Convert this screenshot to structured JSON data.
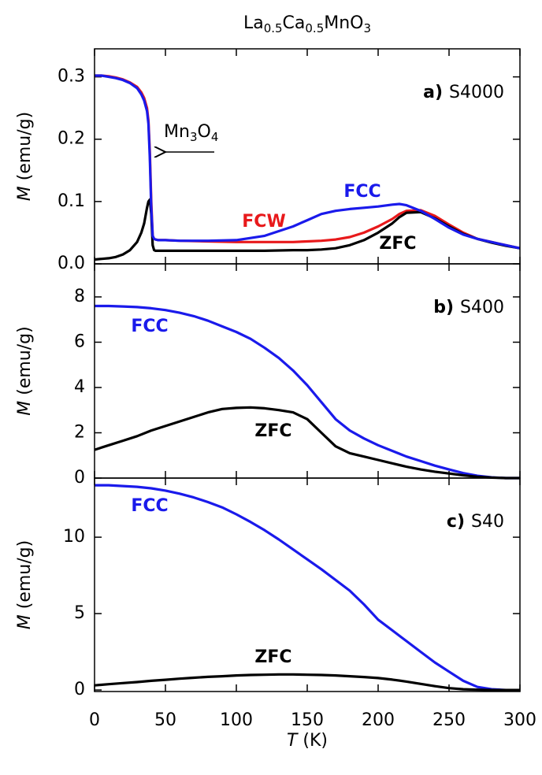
{
  "chart_data": [
    {
      "type": "line",
      "title": "La0.5Ca0.5MnO3",
      "panel_label": "a)",
      "sample": "S4000",
      "ylabel": "M (emu/g)",
      "annotation": "Mn3O4",
      "x": [
        0,
        5,
        10,
        15,
        20,
        25,
        30,
        33,
        35,
        37,
        38,
        39,
        40,
        41,
        42,
        43,
        45,
        50,
        60,
        80,
        100,
        120,
        140,
        150,
        160,
        170,
        180,
        190,
        200,
        210,
        215,
        220,
        230,
        240,
        250,
        260,
        270,
        280,
        290,
        300
      ],
      "xlim": [
        0,
        300
      ],
      "xticks": [
        0,
        50,
        100,
        150,
        200,
        250,
        300
      ],
      "ylim": [
        0,
        0.345
      ],
      "yticks": [
        {
          "value": 0,
          "label": "0.0"
        },
        0.1,
        0.2,
        0.3
      ],
      "series": [
        {
          "name": "FCW",
          "color": "#e8191b",
          "values": [
            0.302,
            0.302,
            0.301,
            0.299,
            0.296,
            0.291,
            0.284,
            0.275,
            0.266,
            0.25,
            0.23,
            0.18,
            0.1,
            0.045,
            0.04,
            0.039,
            0.038,
            0.038,
            0.037,
            0.036,
            0.035,
            0.035,
            0.035,
            0.036,
            0.037,
            0.039,
            0.043,
            0.05,
            0.06,
            0.072,
            0.08,
            0.085,
            0.086,
            0.077,
            0.063,
            0.05,
            0.04,
            0.035,
            0.03,
            0.025
          ]
        },
        {
          "name": "ZFC",
          "color": "#000000",
          "values": [
            0.007,
            0.008,
            0.009,
            0.011,
            0.015,
            0.022,
            0.035,
            0.05,
            0.065,
            0.09,
            0.1,
            0.103,
            0.08,
            0.03,
            0.022,
            0.021,
            0.021,
            0.021,
            0.021,
            0.021,
            0.021,
            0.021,
            0.022,
            0.022,
            0.023,
            0.025,
            0.03,
            0.038,
            0.05,
            0.065,
            0.075,
            0.082,
            0.083,
            0.073,
            0.06,
            0.048,
            0.04,
            0.034,
            0.029,
            0.025
          ]
        },
        {
          "name": "FCC",
          "color": "#1a1aeb",
          "values": [
            0.302,
            0.302,
            0.3,
            0.298,
            0.295,
            0.29,
            0.282,
            0.272,
            0.262,
            0.245,
            0.225,
            0.17,
            0.09,
            0.045,
            0.04,
            0.039,
            0.038,
            0.038,
            0.037,
            0.037,
            0.038,
            0.045,
            0.06,
            0.07,
            0.08,
            0.085,
            0.088,
            0.09,
            0.092,
            0.095,
            0.096,
            0.094,
            0.085,
            0.072,
            0.058,
            0.047,
            0.04,
            0.035,
            0.03,
            0.025
          ]
        }
      ]
    },
    {
      "type": "line",
      "panel_label": "b)",
      "sample": "S400",
      "ylabel": "M (emu/g)",
      "x": [
        0,
        10,
        20,
        30,
        40,
        50,
        60,
        70,
        80,
        90,
        100,
        110,
        120,
        130,
        140,
        150,
        160,
        170,
        180,
        190,
        200,
        210,
        220,
        230,
        240,
        250,
        260,
        270,
        280,
        290,
        300
      ],
      "xlim": [
        0,
        300
      ],
      "xticks": [
        0,
        50,
        100,
        150,
        200,
        250,
        300
      ],
      "ylim": [
        0,
        9.46
      ],
      "yticks": [
        0,
        2,
        4,
        6,
        8
      ],
      "series": [
        {
          "name": "FCC",
          "color": "#1a1aeb",
          "values": [
            7.6,
            7.6,
            7.58,
            7.55,
            7.5,
            7.42,
            7.3,
            7.15,
            6.95,
            6.7,
            6.45,
            6.15,
            5.75,
            5.3,
            4.75,
            4.1,
            3.35,
            2.6,
            2.1,
            1.75,
            1.45,
            1.2,
            0.95,
            0.75,
            0.55,
            0.38,
            0.22,
            0.1,
            0.03,
            0,
            0
          ]
        },
        {
          "name": "ZFC",
          "color": "#000000",
          "values": [
            1.25,
            1.45,
            1.65,
            1.85,
            2.1,
            2.3,
            2.5,
            2.7,
            2.9,
            3.05,
            3.1,
            3.12,
            3.08,
            3,
            2.9,
            2.6,
            2,
            1.4,
            1.1,
            0.95,
            0.8,
            0.65,
            0.5,
            0.38,
            0.28,
            0.2,
            0.12,
            0.06,
            0.02,
            0,
            0
          ]
        }
      ]
    },
    {
      "type": "line",
      "panel_label": "c)",
      "sample": "S40",
      "ylabel": "M (emu/g)",
      "xlabel": "T (K)",
      "x": [
        0,
        10,
        20,
        30,
        40,
        50,
        60,
        70,
        80,
        90,
        100,
        110,
        120,
        130,
        140,
        150,
        160,
        170,
        180,
        190,
        200,
        210,
        220,
        230,
        240,
        250,
        260,
        270,
        280,
        290,
        300
      ],
      "xlim": [
        0,
        300
      ],
      "xticks": [
        0,
        50,
        100,
        150,
        200,
        250,
        300
      ],
      "ylim": [
        -0.1,
        13.87
      ],
      "yticks": [
        0,
        5,
        10
      ],
      "series": [
        {
          "name": "FCC",
          "color": "#1a1aeb",
          "values": [
            13.4,
            13.4,
            13.35,
            13.3,
            13.2,
            13.05,
            12.85,
            12.6,
            12.3,
            11.95,
            11.5,
            11,
            10.45,
            9.85,
            9.2,
            8.55,
            7.9,
            7.2,
            6.5,
            5.6,
            4.6,
            3.9,
            3.2,
            2.5,
            1.8,
            1.2,
            0.6,
            0.2,
            0.05,
            0,
            0
          ]
        },
        {
          "name": "ZFC",
          "color": "#000000",
          "values": [
            0.3,
            0.38,
            0.45,
            0.52,
            0.6,
            0.67,
            0.74,
            0.8,
            0.86,
            0.9,
            0.95,
            0.98,
            1,
            1.02,
            1.02,
            1,
            0.98,
            0.95,
            0.9,
            0.85,
            0.78,
            0.68,
            0.55,
            0.4,
            0.25,
            0.12,
            0.05,
            0.02,
            0,
            0,
            0
          ]
        }
      ]
    }
  ]
}
